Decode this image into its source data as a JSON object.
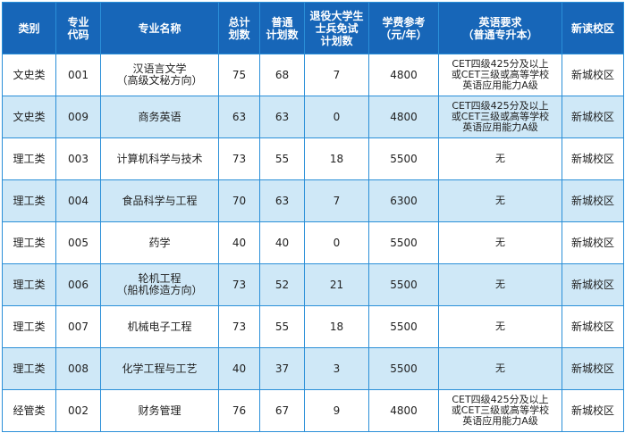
{
  "table": {
    "header": [
      "类别",
      "专业\n代码",
      "专业名称",
      "总计\n划数",
      "普通\n计划数",
      "退役大学生\n士兵免试\n计划数",
      "学费参考\n（元/年）",
      "英语要求\n（普通专升本）",
      "新读校区"
    ],
    "rows": [
      [
        "文史类",
        "001",
        "汉语言文学\n（高级文秘方向）",
        75,
        68,
        7,
        4800,
        "CET四级425分及以上\n或CET三级或高等学校\n英语应用能力A级",
        "新城校区"
      ],
      [
        "文史类",
        "009",
        "商务英语",
        63,
        63,
        0,
        4800,
        "CET四级425分及以上\n或CET三级或高等学校\n英语应用能力A级",
        "新城校区"
      ],
      [
        "理工类",
        "003",
        "计算机科学与技术",
        73,
        55,
        18,
        5500,
        "无",
        "新城校区"
      ],
      [
        "理工类",
        "004",
        "食品科学与工程",
        70,
        63,
        7,
        6300,
        "无",
        "新城校区"
      ],
      [
        "理工类",
        "005",
        "药学",
        40,
        40,
        0,
        5500,
        "无",
        "新城校区"
      ],
      [
        "理工类",
        "006",
        "轮机工程\n（船机修造方向）",
        73,
        52,
        21,
        5500,
        "无",
        "新城校区"
      ],
      [
        "理工类",
        "007",
        "机械电子工程",
        73,
        55,
        18,
        5500,
        "无",
        "新城校区"
      ],
      [
        "理工类",
        "008",
        "化学工程与工艺",
        40,
        37,
        3,
        5500,
        "无",
        "新城校区"
      ],
      [
        "经管类",
        "002",
        "财务管理",
        76,
        67,
        9,
        4800,
        "CET四级425分及以上\n或CET三级或高等学校\n英语应用能力A级",
        "新城校区"
      ]
    ]
  }
}
